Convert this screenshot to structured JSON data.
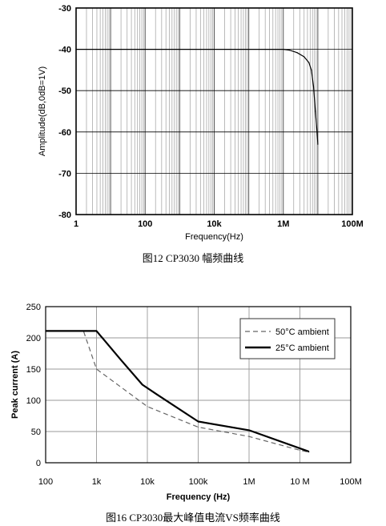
{
  "chart_data": [
    {
      "type": "line",
      "caption": "图12 CP3030 幅频曲线",
      "xlabel": "Frequency(Hz)",
      "ylabel": "Amplitude(dB,0dB=1V)",
      "xscale": "log",
      "xlim": [
        1,
        100000000
      ],
      "ylim": [
        -80,
        -30
      ],
      "grid": true,
      "xticks": [
        {
          "value": 1,
          "label": "1"
        },
        {
          "value": 100,
          "label": "100"
        },
        {
          "value": 10000,
          "label": "10k"
        },
        {
          "value": 1000000,
          "label": "1M"
        },
        {
          "value": 100000000,
          "label": "100M"
        }
      ],
      "yticks": [
        {
          "value": -30,
          "label": "-30"
        },
        {
          "value": -40,
          "label": "-40"
        },
        {
          "value": -50,
          "label": "-50"
        },
        {
          "value": -60,
          "label": "-60"
        },
        {
          "value": -70,
          "label": "-70"
        },
        {
          "value": -80,
          "label": "-80"
        }
      ],
      "series": [
        {
          "x": [
            1,
            1000,
            1000000,
            1500000,
            2500000,
            4000000,
            5500000,
            6500000,
            7500000,
            8500000,
            9500000,
            10000000
          ],
          "y": [
            -40,
            -40,
            -40,
            -40.2,
            -40.8,
            -41.8,
            -43.2,
            -45,
            -49,
            -55,
            -60,
            -63
          ]
        }
      ]
    },
    {
      "type": "line",
      "caption": "图16 CP3030最大峰值电流VS频率曲线",
      "xlabel": "Frequency (Hz)",
      "ylabel": "Peak current (A)",
      "xscale": "log",
      "xlim": [
        100,
        100000000
      ],
      "ylim": [
        0,
        250
      ],
      "grid": true,
      "legend": "top-right",
      "xticks": [
        {
          "value": 100,
          "label": "100"
        },
        {
          "value": 1000,
          "label": "1k"
        },
        {
          "value": 10000,
          "label": "10k"
        },
        {
          "value": 100000,
          "label": "100k"
        },
        {
          "value": 1000000,
          "label": "1M"
        },
        {
          "value": 10000000,
          "label": "10 M"
        },
        {
          "value": 100000000,
          "label": "100M"
        }
      ],
      "yticks": [
        {
          "value": 0,
          "label": "0"
        },
        {
          "value": 50,
          "label": "50"
        },
        {
          "value": 100,
          "label": "100"
        },
        {
          "value": 150,
          "label": "150"
        },
        {
          "value": 200,
          "label": "200"
        },
        {
          "value": 250,
          "label": "250"
        }
      ],
      "series": [
        {
          "name": "50°C ambient",
          "style": "dashed",
          "color": "#666666",
          "x": [
            560,
            1000,
            10000,
            100000,
            1000000,
            10000000,
            15000000
          ],
          "y": [
            210,
            150,
            90,
            57,
            42,
            20,
            17
          ]
        },
        {
          "name": "25°C ambient",
          "style": "solid",
          "color": "#000000",
          "x": [
            100,
            1000,
            3000,
            8000,
            15000,
            100000,
            1000000,
            15000000
          ],
          "y": [
            211,
            211,
            165,
            125,
            110,
            66,
            52,
            18
          ]
        }
      ]
    }
  ]
}
